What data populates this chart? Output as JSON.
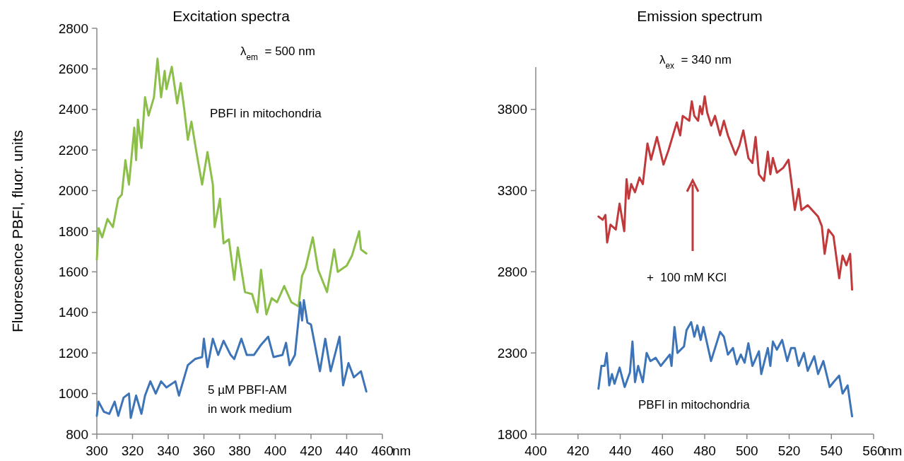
{
  "chart_data": [
    {
      "type": "line",
      "title": "Excitation spectra",
      "xlabel": "nm",
      "ylabel": "Fluorescence PBFI, fluor. units",
      "xlim": [
        300,
        460
      ],
      "xticks": [
        300,
        320,
        340,
        360,
        380,
        400,
        420,
        440,
        460
      ],
      "ylim": [
        800,
        2800
      ],
      "yticks": [
        800,
        1000,
        1200,
        1400,
        1600,
        1800,
        2000,
        2200,
        2400,
        2600,
        2800
      ],
      "annotations": [
        "λ$_{em}$ = 500 nm"
      ],
      "series": [
        {
          "name": "PBFI in mitochondria",
          "color": "#8cbf4a",
          "x": [
            300,
            301,
            303,
            306,
            309,
            312,
            314,
            316,
            318,
            321,
            322,
            323,
            325,
            327,
            329,
            332,
            334,
            336,
            338,
            339,
            342,
            345,
            347,
            349,
            351,
            353,
            356,
            359,
            362,
            365,
            366,
            369,
            371,
            374,
            377,
            379,
            383,
            387,
            390,
            392,
            395,
            398,
            401,
            405,
            409,
            413,
            415,
            417,
            421,
            424,
            429,
            433,
            435,
            440,
            443,
            447,
            448,
            451
          ],
          "values": [
            1660,
            1815,
            1770,
            1860,
            1820,
            1960,
            1980,
            2150,
            2030,
            2310,
            2150,
            2350,
            2210,
            2460,
            2370,
            2460,
            2650,
            2460,
            2590,
            2500,
            2610,
            2430,
            2530,
            2400,
            2250,
            2340,
            2180,
            2030,
            2190,
            2030,
            1820,
            1960,
            1740,
            1760,
            1560,
            1720,
            1500,
            1490,
            1400,
            1610,
            1390,
            1470,
            1450,
            1530,
            1450,
            1430,
            1580,
            1620,
            1770,
            1610,
            1500,
            1710,
            1600,
            1630,
            1680,
            1800,
            1710,
            1690
          ]
        },
        {
          "name": "5 µM PBFI-AM\nin work medium",
          "color": "#3d74b8",
          "x": [
            300,
            301,
            304,
            307,
            310,
            312,
            315,
            318,
            319,
            322,
            325,
            327,
            330,
            333,
            336,
            339,
            344,
            346,
            351,
            355,
            359,
            360,
            362,
            365,
            368,
            371,
            375,
            377,
            381,
            384,
            388,
            392,
            396,
            399,
            404,
            406,
            408,
            411,
            414,
            415,
            416,
            418,
            420,
            425,
            428,
            431,
            436,
            438,
            441,
            444,
            448,
            451
          ],
          "values": [
            890,
            960,
            910,
            900,
            960,
            890,
            980,
            1000,
            880,
            990,
            900,
            990,
            1060,
            1000,
            1060,
            1030,
            1060,
            990,
            1140,
            1170,
            1180,
            1270,
            1130,
            1270,
            1190,
            1260,
            1190,
            1170,
            1270,
            1190,
            1190,
            1240,
            1280,
            1180,
            1190,
            1250,
            1140,
            1190,
            1450,
            1360,
            1460,
            1350,
            1340,
            1110,
            1270,
            1110,
            1280,
            1040,
            1150,
            1080,
            1110,
            1010
          ]
        }
      ]
    },
    {
      "type": "line",
      "title": "Emission spectrum",
      "xlabel": "nm",
      "xlim": [
        400,
        560
      ],
      "xticks": [
        400,
        420,
        440,
        460,
        480,
        500,
        520,
        540,
        560
      ],
      "ylim": [
        1800,
        4060
      ],
      "yticks": [
        1800,
        2300,
        2800,
        3300,
        3800
      ],
      "annotations": [
        "λ$_{ex}$ = 340 nm",
        "+  100 mM KCl"
      ],
      "series": [
        {
          "color": "#c0393b",
          "x": [
            429.7,
            431.7,
            433,
            433.8,
            435.4,
            437.9,
            439.7,
            441.9,
            443,
            444,
            445.2,
            447,
            449.1,
            450.7,
            452.9,
            454.6,
            457.4,
            460.5,
            462.9,
            466.8,
            468.4,
            469.6,
            472.7,
            473.9,
            475.1,
            476.9,
            477.8,
            478.8,
            480,
            481.2,
            483.1,
            484.9,
            487.3,
            489.1,
            491,
            494.6,
            496.5,
            498.3,
            500.7,
            502.6,
            504.1,
            505.7,
            508.1,
            509.9,
            511.1,
            512.3,
            514.2,
            517.2,
            519.7,
            520.9,
            522.7,
            524.5,
            525.8,
            528.8,
            533.7,
            535.5,
            536.8,
            538.6,
            541,
            543.7,
            545.3,
            547.1,
            548.9,
            549.8
          ],
          "values": [
            3140,
            3120,
            3150,
            2980,
            3090,
            3060,
            3220,
            3050,
            3370,
            3250,
            3340,
            3290,
            3380,
            3340,
            3590,
            3490,
            3630,
            3460,
            3550,
            3720,
            3640,
            3760,
            3730,
            3850,
            3760,
            3730,
            3820,
            3770,
            3880,
            3780,
            3700,
            3760,
            3640,
            3730,
            3640,
            3520,
            3580,
            3670,
            3500,
            3470,
            3630,
            3400,
            3360,
            3540,
            3400,
            3500,
            3410,
            3440,
            3490,
            3370,
            3180,
            3310,
            3180,
            3210,
            3140,
            3080,
            2910,
            3060,
            3020,
            2760,
            2900,
            2840,
            2910,
            2690
          ]
        },
        {
          "name": "PBFI in mitochondria",
          "color": "#3d74b8",
          "x": [
            429.7,
            431.1,
            432.6,
            433.6,
            434.8,
            436.1,
            437.3,
            439.7,
            442.1,
            444.6,
            445.8,
            447,
            448.5,
            450.7,
            452.5,
            454.3,
            456.8,
            459.2,
            463.5,
            464.3,
            465.7,
            467.1,
            470.2,
            471.4,
            473.6,
            475.1,
            476.5,
            478.1,
            479.4,
            483,
            487.3,
            489.1,
            491,
            493.4,
            495.2,
            497.1,
            498.9,
            500.7,
            502.6,
            505.7,
            506.8,
            509.9,
            511.1,
            512.3,
            514.2,
            516.7,
            519.1,
            520.9,
            522.7,
            524.5,
            527,
            528.8,
            531.9,
            533.7,
            536.2,
            539.2,
            541,
            543.7,
            545.3,
            547.7,
            549.8
          ],
          "values": [
            2080,
            2220,
            2220,
            2300,
            2100,
            2170,
            2110,
            2210,
            2090,
            2180,
            2370,
            2120,
            2220,
            2120,
            2300,
            2250,
            2270,
            2220,
            2290,
            2220,
            2460,
            2300,
            2340,
            2440,
            2490,
            2400,
            2470,
            2380,
            2460,
            2250,
            2430,
            2400,
            2290,
            2330,
            2230,
            2290,
            2240,
            2360,
            2220,
            2310,
            2170,
            2330,
            2220,
            2370,
            2320,
            2380,
            2250,
            2330,
            2330,
            2220,
            2300,
            2190,
            2280,
            2170,
            2250,
            2090,
            2120,
            2160,
            2050,
            2100,
            1910
          ]
        }
      ]
    }
  ]
}
